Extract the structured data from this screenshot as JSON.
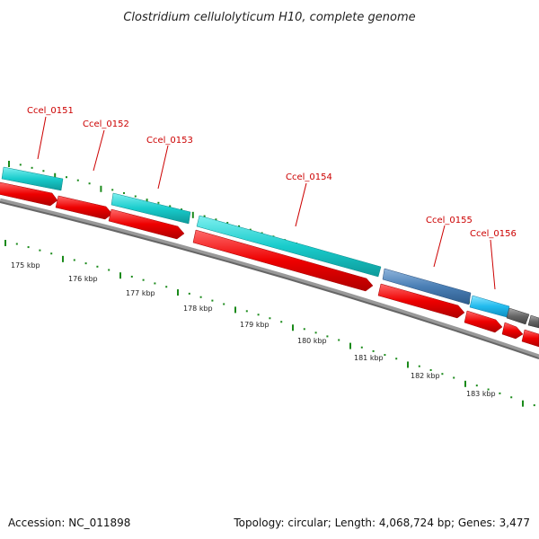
{
  "title": "Clostridium cellulolyticum H10, complete genome",
  "accession": "Accession: NC_011898",
  "summary": "Topology: circular; Length: 4,068,724 bp; Genes: 3,477",
  "colors": {
    "gene_label": "#cc0000",
    "cds_forward": "#19cccc",
    "cds_reverse": "#ee0000",
    "highlight": "#4a7fb5",
    "highlight_light": "#22bbee",
    "other_feature": "#666666",
    "backbone": "#777777",
    "gc_ticks": "#1a8a1a"
  },
  "gene_labels": [
    {
      "name": "Ccel_0151"
    },
    {
      "name": "Ccel_0152"
    },
    {
      "name": "Ccel_0153"
    },
    {
      "name": "Ccel_0154"
    },
    {
      "name": "Ccel_0155"
    },
    {
      "name": "Ccel_0156"
    }
  ],
  "kbp_labels": [
    "175 kbp",
    "176 kbp",
    "177 kbp",
    "178 kbp",
    "179 kbp",
    "180 kbp",
    "181 kbp",
    "182 kbp",
    "183 kbp"
  ]
}
